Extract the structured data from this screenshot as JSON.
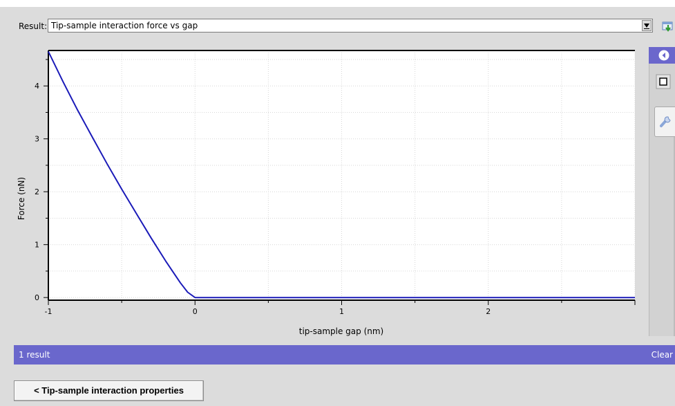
{
  "result": {
    "label": "Result:",
    "selected": "Tip-sample interaction force vs gap"
  },
  "status": {
    "count": "1 result",
    "clear_label": "Clear"
  },
  "back_button": {
    "label": "< Tip-sample interaction properties"
  },
  "colors": {
    "accent": "#6a67cc",
    "series": "#1a1ab8"
  },
  "icons": {
    "download": "download-icon",
    "collapse": "collapse-arrow-icon",
    "square": "square-icon",
    "wrench": "wrench-icon"
  },
  "chart_data": {
    "type": "line",
    "title": "",
    "xlabel": "tip-sample gap (nm)",
    "ylabel": "Force (nN)",
    "xlim": [
      -1,
      3
    ],
    "ylim": [
      -0.05,
      4.67
    ],
    "xticks": [
      -1,
      0,
      1,
      2
    ],
    "xtick_labels": [
      "-1",
      "0",
      "1",
      "2"
    ],
    "yticks": [
      0,
      1,
      2,
      3,
      4
    ],
    "ytick_labels": [
      "0",
      "1",
      "2",
      "3",
      "4"
    ],
    "grid": true,
    "legend": "none",
    "series": [
      {
        "x": [
          -1,
          -0.9,
          -0.8,
          -0.7,
          -0.6,
          -0.5,
          -0.4,
          -0.3,
          -0.2,
          -0.1,
          -0.05,
          0,
          0.5,
          1,
          1.5,
          2,
          2.5,
          3
        ],
        "y": [
          4.65,
          4.08,
          3.54,
          3.03,
          2.53,
          2.05,
          1.59,
          1.13,
          0.69,
          0.28,
          0.1,
          0.0,
          0.0,
          0.0,
          0.0,
          0.0,
          0.0,
          0.0
        ]
      }
    ]
  }
}
